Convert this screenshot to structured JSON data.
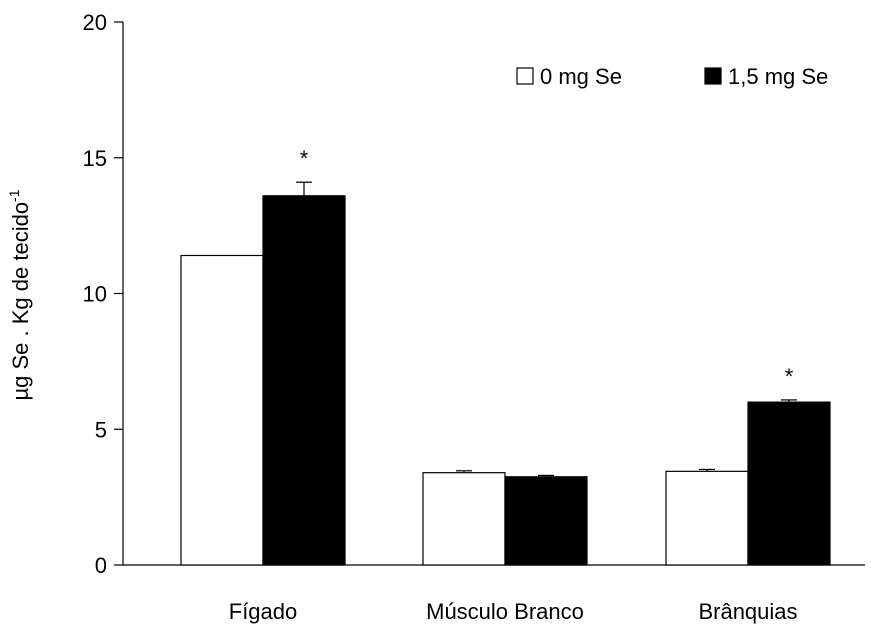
{
  "chart_data": {
    "type": "bar",
    "categories": [
      "Fígado",
      "Músculo Branco",
      "Brânquias"
    ],
    "series": [
      {
        "name": "0 mg Se",
        "values": [
          11.4,
          3.4,
          3.45
        ],
        "errors": [
          0,
          0.07,
          0.07
        ],
        "color": "#ffffff"
      },
      {
        "name": "1,5 mg Se",
        "values": [
          13.6,
          3.25,
          6.0
        ],
        "errors": [
          0.5,
          0.05,
          0.08
        ],
        "color": "#000000"
      }
    ],
    "significance": [
      "*",
      "",
      "*"
    ],
    "ylim": [
      0,
      20
    ],
    "yticks": [
      0,
      5,
      10,
      15,
      20
    ],
    "ylabel": "µg Se . Kg de tecido",
    "ylabel_superscript": "-1",
    "xlabel": "",
    "legend_position": "top-right",
    "grid": false
  }
}
